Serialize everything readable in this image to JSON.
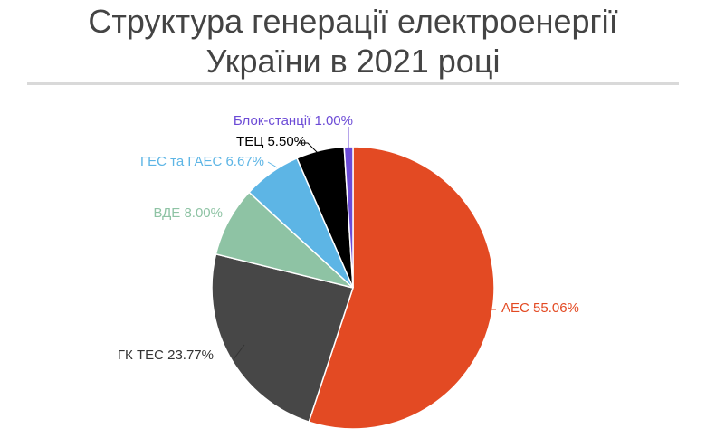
{
  "title_line1": "Структура генерації електроенергії",
  "title_line2": "України в 2021 році",
  "chart_data": {
    "type": "pie",
    "slices": [
      {
        "label": "АЕС 55.06%",
        "value": 55.06,
        "color": "#e34a23"
      },
      {
        "label": "ГК ТЕС 23.77%",
        "value": 23.77,
        "color": "#474747"
      },
      {
        "label": "ВДЕ 8.00%",
        "value": 8.0,
        "color": "#8ec3a4"
      },
      {
        "label": "ГЕС та ГАЕС 6.67%",
        "value": 6.67,
        "color": "#5db5e5"
      },
      {
        "label": "ТЕЦ 5.50%",
        "value": 5.5,
        "color": "#000000"
      },
      {
        "label": "Блок-станції 1.00%",
        "value": 1.0,
        "color": "#6c4bd6"
      }
    ],
    "label_colors": [
      "#e34a23",
      "#333333",
      "#8ec3a4",
      "#5db5e5",
      "#000000",
      "#6c4bd6"
    ],
    "start_angle": "top, clockwise"
  }
}
